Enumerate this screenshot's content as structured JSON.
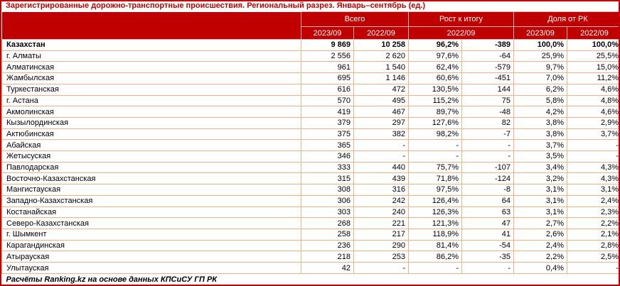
{
  "title": "Зарегистрированные дорожно-транспортные происшествия. Региональный разрез. Январь–сентябрь (ед.)",
  "source_note": "Расчёты Ranking.kz на основе данных КПСиСУ ГП РК",
  "colors": {
    "header_bg": "#C00000",
    "title_text": "#C00000",
    "header_text": "#FFFFFF",
    "grid_line": "#F4B183",
    "body_text": "#000000"
  },
  "header": {
    "groups": [
      {
        "label": "Всего"
      },
      {
        "label": "Рост к итогу"
      },
      {
        "label": "Доля от РК"
      }
    ],
    "subheaders": {
      "total_2023": "2023/09",
      "total_2022": "2022/09",
      "growth_2022": "2022/09",
      "share_2023": "2023/09",
      "share_2022": "2022/09"
    }
  },
  "chart_data": {
    "type": "table",
    "title": "Зарегистрированные дорожно-транспортные происшествия. Региональный разрез. Январь–сентябрь (ед.)",
    "columns": [
      "Регион",
      "Всего 2023/09",
      "Всего 2022/09",
      "Рост к итогу 2022/09 (%)",
      "Рост к итогу 2022/09 (абс.)",
      "Доля от РК 2023/09",
      "Доля от РК 2022/09"
    ],
    "rows": [
      [
        "Казахстан",
        "9 869",
        "10 258",
        "96,2%",
        "-389",
        "100,0%",
        "100,0%"
      ],
      [
        "г. Алматы",
        "2 556",
        "2 620",
        "97,6%",
        "-64",
        "25,9%",
        "25,5%"
      ],
      [
        "Алматинская",
        "961",
        "1 540",
        "62,4%",
        "-579",
        "9,7%",
        "15,0%"
      ],
      [
        "Жамбылская",
        "695",
        "1 146",
        "60,6%",
        "-451",
        "7,0%",
        "11,2%"
      ],
      [
        "Туркестанская",
        "616",
        "472",
        "130,5%",
        "144",
        "6,2%",
        "4,6%"
      ],
      [
        "г. Астана",
        "570",
        "495",
        "115,2%",
        "75",
        "5,8%",
        "4,8%"
      ],
      [
        "Акмолинская",
        "419",
        "467",
        "89,7%",
        "-48",
        "4,2%",
        "4,6%"
      ],
      [
        "Кызылординская",
        "379",
        "297",
        "127,6%",
        "82",
        "3,8%",
        "2,9%"
      ],
      [
        "Актюбинская",
        "375",
        "382",
        "98,2%",
        "-7",
        "3,8%",
        "3,7%"
      ],
      [
        "Абайская",
        "365",
        "-",
        "-",
        "-",
        "3,7%",
        "-"
      ],
      [
        "Жетысуская",
        "346",
        "-",
        "-",
        "-",
        "3,5%",
        "-"
      ],
      [
        "Павлодарская",
        "333",
        "440",
        "75,7%",
        "-107",
        "3,4%",
        "4,3%"
      ],
      [
        "Восточно-Казахстанская",
        "315",
        "439",
        "71,8%",
        "-124",
        "3,2%",
        "4,3%"
      ],
      [
        "Мангистауская",
        "308",
        "316",
        "97,5%",
        "-8",
        "3,1%",
        "3,1%"
      ],
      [
        "Западно-Казахстанская",
        "306",
        "242",
        "126,4%",
        "64",
        "3,1%",
        "2,4%"
      ],
      [
        "Костанайская",
        "303",
        "240",
        "126,3%",
        "63",
        "3,1%",
        "2,3%"
      ],
      [
        "Северо-Казахстанская",
        "268",
        "221",
        "121,3%",
        "47",
        "2,7%",
        "2,2%"
      ],
      [
        "г. Шымкент",
        "258",
        "217",
        "118,9%",
        "41",
        "2,6%",
        "2,1%"
      ],
      [
        "Карагандинская",
        "236",
        "290",
        "81,4%",
        "-54",
        "2,4%",
        "2,8%"
      ],
      [
        "Атырауская",
        "218",
        "253",
        "86,2%",
        "-35",
        "2,2%",
        "2,5%"
      ],
      [
        "Улытауская",
        "42",
        "-",
        "-",
        "-",
        "0,4%",
        "-"
      ]
    ]
  }
}
